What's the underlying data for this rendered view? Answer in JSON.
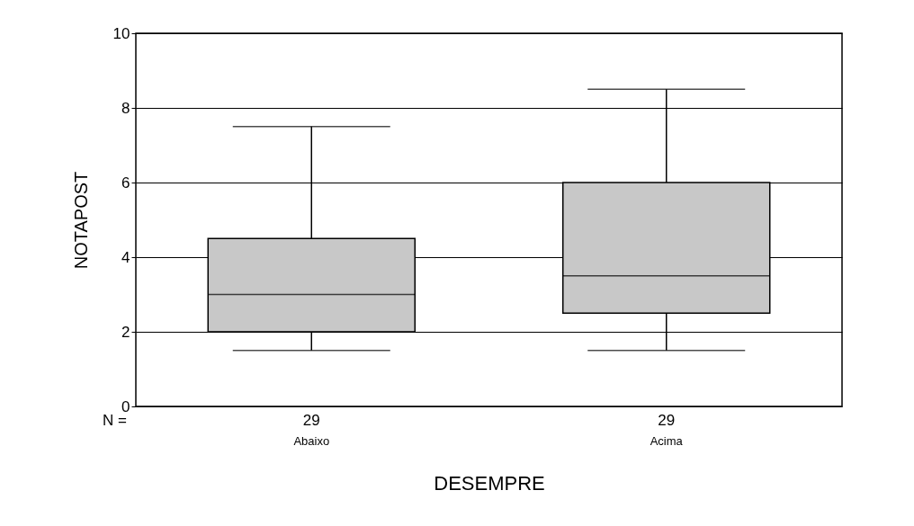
{
  "chart_data": {
    "type": "box",
    "xlabel": "DESEMPRE",
    "ylabel": "NOTAPOST",
    "categories": [
      "Abaixo",
      "Acima"
    ],
    "series": [
      {
        "color": "#c8c8c8",
        "boxes": [
          {
            "low": 1.5,
            "q1": 2,
            "median": 3,
            "q3": 4.5,
            "high": 7.5
          },
          {
            "low": 1.5,
            "q1": 2.5,
            "median": 3.5,
            "q3": 6,
            "high": 8.5
          }
        ]
      }
    ],
    "ylim": [
      0,
      10
    ],
    "yticks": [
      0,
      2,
      4,
      6,
      8,
      10
    ],
    "grid": "y",
    "annotations": [
      "N =",
      "29",
      "29"
    ]
  }
}
